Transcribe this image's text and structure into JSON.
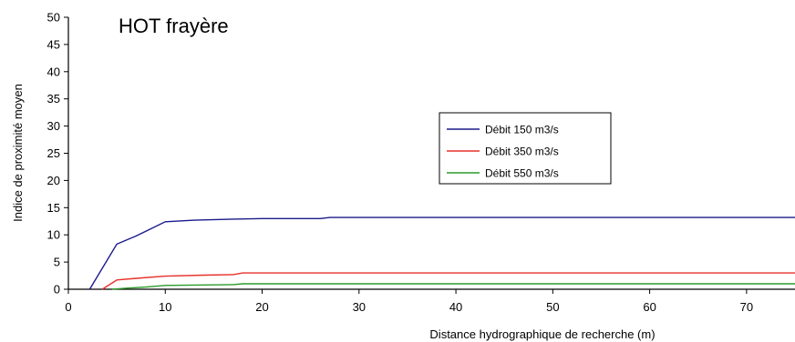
{
  "chart_data": {
    "type": "line",
    "title": "HOT frayère",
    "xlabel": "Distance hydrographique de recherche (m)",
    "ylabel": "Indice de proximité moyen",
    "xlim": [
      0,
      75
    ],
    "ylim": [
      0,
      50
    ],
    "xticks": [
      0,
      10,
      20,
      30,
      40,
      50,
      60,
      70
    ],
    "yticks": [
      0,
      5,
      10,
      15,
      20,
      25,
      30,
      35,
      40,
      45,
      50
    ],
    "grid": false,
    "legend_position": "center-right",
    "series": [
      {
        "name": "Débit 150 m3/s",
        "color": "#1a1a8c",
        "x": [
          2.2,
          5,
          7,
          10,
          13,
          17,
          20,
          26,
          27,
          75
        ],
        "y": [
          0,
          8.3,
          9.8,
          12.4,
          12.7,
          12.9,
          13.0,
          13.0,
          13.2,
          13.2
        ]
      },
      {
        "name": "Débit 350 m3/s",
        "color": "#e8302a",
        "x": [
          3.5,
          5,
          7,
          10,
          14,
          17,
          18,
          75
        ],
        "y": [
          0,
          1.7,
          2.0,
          2.4,
          2.6,
          2.7,
          3.0,
          3.0
        ]
      },
      {
        "name": "Débit 550 m3/s",
        "color": "#2a9a2a",
        "x": [
          4.5,
          6,
          8,
          10,
          15,
          17,
          18,
          75
        ],
        "y": [
          0,
          0.2,
          0.4,
          0.7,
          0.8,
          0.85,
          1.0,
          1.0
        ]
      }
    ]
  }
}
